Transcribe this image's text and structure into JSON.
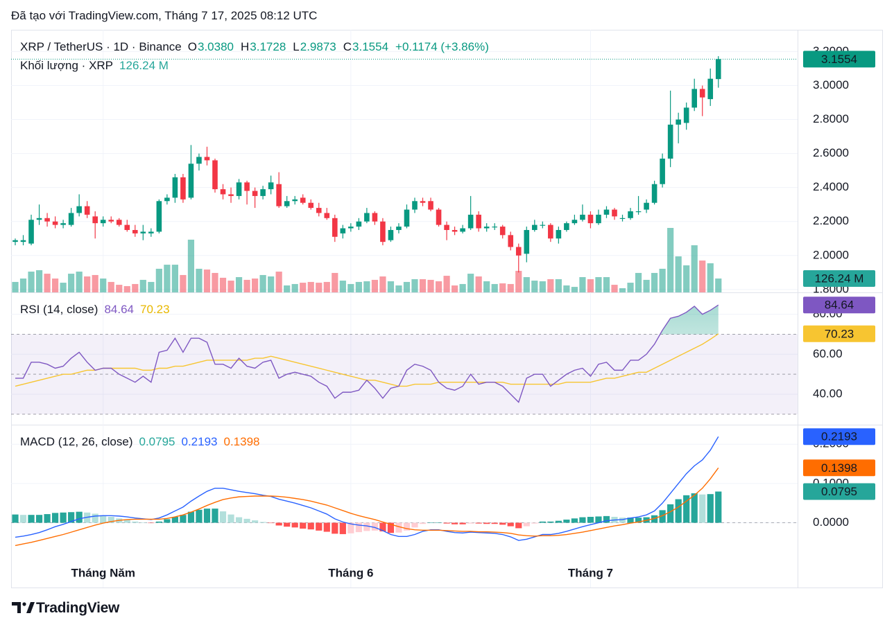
{
  "header": {
    "created": "Đã tạo với TradingView.com, Tháng 7 17, 2025 08:12 UTC",
    "brand": "TradingView"
  },
  "chart_data": [
    {
      "type": "candlestick",
      "title": "XRP / TetherUS · 1D · Binance",
      "ohlc": [
        {
          "key": "O",
          "value": "3.0380"
        },
        {
          "key": "H",
          "value": "3.1728"
        },
        {
          "key": "L",
          "value": "2.9873"
        },
        {
          "key": "C",
          "value": "3.1554"
        }
      ],
      "change": "+0.1174 (+3.86%)",
      "up_color": "#089981",
      "down_color": "#f23645",
      "open": [
        2.08,
        2.08,
        2.07,
        2.21,
        2.22,
        2.2,
        2.18,
        2.18,
        2.25,
        2.29,
        2.23,
        2.19,
        2.21,
        2.21,
        2.18,
        2.15,
        2.13,
        2.13,
        2.14,
        2.32,
        2.34,
        2.46,
        2.34,
        2.54,
        2.58,
        2.56,
        2.39,
        2.36,
        2.35,
        2.43,
        2.38,
        2.35,
        2.39,
        2.42,
        2.29,
        2.32,
        2.34,
        2.31,
        2.28,
        2.25,
        2.22,
        2.13,
        2.16,
        2.17,
        2.2,
        2.25,
        2.2,
        2.09,
        2.15,
        2.17,
        2.27,
        2.32,
        2.32,
        2.27,
        2.18,
        2.15,
        2.14,
        2.16,
        2.24,
        2.16,
        2.17,
        2.17,
        2.12,
        2.05,
        2.01,
        2.15,
        2.18,
        2.18,
        2.1,
        2.15,
        2.19,
        2.21,
        2.24,
        2.19,
        2.24,
        2.27,
        2.22,
        2.22,
        2.26,
        2.27,
        2.31,
        2.42,
        2.57,
        2.77,
        2.78,
        2.87,
        2.98,
        2.92,
        3.038
      ],
      "high": [
        2.1,
        2.12,
        2.24,
        2.3,
        2.25,
        2.23,
        2.21,
        2.28,
        2.36,
        2.32,
        2.26,
        2.23,
        2.23,
        2.22,
        2.21,
        2.18,
        2.18,
        2.16,
        2.33,
        2.36,
        2.48,
        2.48,
        2.65,
        2.6,
        2.64,
        2.57,
        2.42,
        2.4,
        2.45,
        2.44,
        2.4,
        2.41,
        2.47,
        2.49,
        2.35,
        2.35,
        2.36,
        2.33,
        2.31,
        2.28,
        2.24,
        2.18,
        2.19,
        2.22,
        2.28,
        2.26,
        2.22,
        2.17,
        2.19,
        2.3,
        2.34,
        2.34,
        2.34,
        2.28,
        2.2,
        2.17,
        2.18,
        2.35,
        2.26,
        2.19,
        2.19,
        2.18,
        2.14,
        2.07,
        2.17,
        2.21,
        2.2,
        2.19,
        2.17,
        2.2,
        2.24,
        2.3,
        2.26,
        2.27,
        2.29,
        2.28,
        2.24,
        2.28,
        2.35,
        2.33,
        2.44,
        2.6,
        2.97,
        2.84,
        2.9,
        3.04,
        3.0,
        3.1,
        3.1728
      ],
      "low": [
        2.06,
        2.06,
        2.06,
        2.18,
        2.17,
        2.16,
        2.16,
        2.17,
        2.23,
        2.22,
        2.1,
        2.17,
        2.19,
        2.17,
        2.14,
        2.11,
        2.09,
        2.11,
        2.13,
        2.3,
        2.31,
        2.31,
        2.33,
        2.5,
        2.53,
        2.37,
        2.33,
        2.31,
        2.33,
        2.3,
        2.28,
        2.33,
        2.36,
        2.28,
        2.28,
        2.3,
        2.3,
        2.27,
        2.23,
        2.21,
        2.08,
        2.1,
        2.14,
        2.15,
        2.19,
        2.18,
        2.06,
        2.08,
        2.13,
        2.16,
        2.25,
        2.29,
        2.26,
        2.17,
        2.09,
        2.12,
        2.13,
        2.15,
        2.14,
        2.14,
        2.15,
        2.1,
        2.03,
        1.9,
        1.96,
        2.14,
        2.16,
        2.08,
        2.07,
        2.14,
        2.18,
        2.2,
        2.16,
        2.18,
        2.22,
        2.21,
        2.2,
        2.21,
        2.24,
        2.25,
        2.3,
        2.4,
        2.52,
        2.66,
        2.74,
        2.85,
        2.82,
        2.88,
        2.9873
      ],
      "close": [
        2.09,
        2.09,
        2.21,
        2.22,
        2.2,
        2.18,
        2.19,
        2.25,
        2.29,
        2.24,
        2.19,
        2.21,
        2.2,
        2.18,
        2.15,
        2.13,
        2.14,
        2.14,
        2.32,
        2.34,
        2.46,
        2.33,
        2.54,
        2.58,
        2.56,
        2.39,
        2.36,
        2.35,
        2.43,
        2.38,
        2.35,
        2.39,
        2.43,
        2.29,
        2.32,
        2.33,
        2.31,
        2.28,
        2.25,
        2.22,
        2.11,
        2.16,
        2.17,
        2.2,
        2.25,
        2.2,
        2.08,
        2.15,
        2.17,
        2.27,
        2.32,
        2.31,
        2.27,
        2.18,
        2.15,
        2.14,
        2.16,
        2.24,
        2.16,
        2.17,
        2.17,
        2.12,
        2.05,
        2.0,
        2.15,
        2.18,
        2.18,
        2.1,
        2.15,
        2.19,
        2.21,
        2.24,
        2.19,
        2.24,
        2.27,
        2.23,
        2.22,
        2.26,
        2.26,
        2.31,
        2.42,
        2.57,
        2.77,
        2.8,
        2.87,
        2.98,
        2.93,
        3.04,
        3.1554
      ],
      "last_label": "3.1554",
      "ylim": [
        1.783,
        3.328
      ],
      "yticks": [
        {
          "value": 1.8,
          "label": "1.8000"
        },
        {
          "value": 2.0,
          "label": "2.0000"
        },
        {
          "value": 2.2,
          "label": "2.2000"
        },
        {
          "value": 2.4,
          "label": "2.4000"
        },
        {
          "value": 2.6,
          "label": "2.6000"
        },
        {
          "value": 2.8,
          "label": "2.8000"
        },
        {
          "value": 3.0,
          "label": "3.0000"
        },
        {
          "value": 3.2,
          "label": "3.2000"
        }
      ],
      "grid": true,
      "volume": {
        "name": "Khối lượng · XRP",
        "value_label": "126.24 M",
        "values": [
          95,
          126,
          189,
          202,
          170,
          126,
          88,
          170,
          189,
          145,
          158,
          126,
          95,
          69,
          57,
          76,
          114,
          95,
          215,
          252,
          252,
          158,
          480,
          215,
          208,
          177,
          133,
          107,
          139,
          114,
          126,
          158,
          145,
          189,
          63,
          76,
          88,
          95,
          88,
          95,
          177,
          107,
          76,
          95,
          101,
          114,
          145,
          101,
          63,
          95,
          120,
          120,
          114,
          101,
          151,
          63,
          76,
          170,
          145,
          101,
          76,
          82,
          76,
          196,
          139,
          107,
          101,
          120,
          120,
          63,
          50,
          139,
          120,
          139,
          139,
          69,
          38,
          88,
          177,
          114,
          177,
          215,
          587,
          328,
          246,
          429,
          290,
          265,
          126.24
        ]
      }
    },
    {
      "type": "line",
      "title": "RSI (14, close)",
      "series": [
        {
          "color": "#7e57c2",
          "value_label": "84.64",
          "values": [
            48,
            48,
            56,
            56,
            55,
            53,
            54,
            58,
            61,
            56,
            52,
            53,
            53,
            50,
            48,
            46,
            49,
            46,
            61,
            62,
            68,
            61,
            68,
            68,
            66,
            55,
            55,
            53,
            58,
            54,
            53,
            56,
            57,
            48,
            50,
            51,
            50,
            49,
            46,
            44,
            38,
            41,
            41,
            42,
            47,
            43,
            38,
            43,
            44,
            52,
            55,
            54,
            52,
            46,
            43,
            42,
            44,
            50,
            45,
            46,
            46,
            44,
            40,
            36,
            48,
            50,
            50,
            44,
            47,
            50,
            52,
            53,
            49,
            55,
            56,
            52,
            52,
            57,
            57,
            60,
            65,
            72,
            78,
            79,
            81,
            84,
            80,
            82,
            84.64
          ]
        },
        {
          "color": "#f7c531",
          "value_label": "70.23",
          "values": [
            44,
            45,
            46,
            47,
            48,
            49,
            50,
            50,
            51,
            52,
            52,
            53,
            53,
            53,
            53,
            53,
            52,
            52,
            53,
            53,
            54,
            54,
            55,
            56,
            57,
            57,
            57,
            57,
            57,
            57,
            58,
            58,
            59,
            58,
            57,
            56,
            55,
            54,
            53,
            52,
            51,
            50,
            49,
            48,
            47,
            47,
            46,
            45,
            44,
            44,
            45,
            45,
            45,
            46,
            46,
            46,
            46,
            46,
            46,
            46,
            46,
            46,
            45,
            45,
            45,
            45,
            45,
            45,
            45,
            46,
            46,
            46,
            46,
            47,
            48,
            48,
            49,
            50,
            51,
            51,
            53,
            55,
            57,
            59,
            61,
            63,
            65,
            67.5,
            70.23
          ]
        }
      ],
      "ylim": [
        25.1,
        90.6
      ],
      "yticks": [
        {
          "value": 40,
          "label": "40.00"
        },
        {
          "value": 60,
          "label": "60.00"
        },
        {
          "value": 80,
          "label": "80.00"
        }
      ],
      "levels": [
        30,
        50,
        70
      ],
      "band": [
        30,
        70
      ],
      "band_color": "#7e57c2",
      "overbought_fill": "#089981"
    },
    {
      "type": "macd",
      "title": "MACD (12, 26, close)",
      "histogram": {
        "value_label": "0.0795",
        "color": "#26a69a",
        "rising_color": "#26a69a",
        "falling_color": "#b2dfdb",
        "neg_falling_color": "#ff5252",
        "neg_rising_color": "#ffcdd2",
        "values": [
          0.021,
          0.02,
          0.02,
          0.02,
          0.022,
          0.025,
          0.026,
          0.027,
          0.028,
          0.026,
          0.023,
          0.019,
          0.015,
          0.011,
          0.007,
          0.003,
          0.001,
          -0.001,
          0.003,
          0.009,
          0.015,
          0.02,
          0.028,
          0.033,
          0.036,
          0.036,
          0.029,
          0.021,
          0.014,
          0.01,
          0.006,
          0.002,
          -0.001,
          -0.007,
          -0.01,
          -0.012,
          -0.015,
          -0.017,
          -0.02,
          -0.023,
          -0.028,
          -0.029,
          -0.027,
          -0.024,
          -0.021,
          -0.02,
          -0.022,
          -0.026,
          -0.025,
          -0.02,
          -0.012,
          -0.003,
          0.001,
          0.001,
          -0.002,
          -0.004,
          -0.004,
          -0.002,
          -0.002,
          -0.003,
          -0.003,
          -0.005,
          -0.009,
          -0.014,
          -0.009,
          -0.002,
          0.003,
          0.003,
          0.005,
          0.008,
          0.011,
          0.014,
          0.015,
          0.016,
          0.017,
          0.015,
          0.013,
          0.013,
          0.013,
          0.014,
          0.019,
          0.032,
          0.047,
          0.06,
          0.07,
          0.075,
          0.072,
          0.073,
          0.0795
        ]
      },
      "series": [
        {
          "color": "#2962ff",
          "value_label": "0.2193",
          "values": [
            -0.037,
            -0.034,
            -0.03,
            -0.025,
            -0.018,
            -0.01,
            -0.004,
            0.003,
            0.01,
            0.014,
            0.017,
            0.018,
            0.018,
            0.017,
            0.015,
            0.012,
            0.01,
            0.008,
            0.012,
            0.02,
            0.03,
            0.04,
            0.055,
            0.068,
            0.08,
            0.088,
            0.088,
            0.084,
            0.08,
            0.077,
            0.074,
            0.07,
            0.067,
            0.06,
            0.055,
            0.05,
            0.044,
            0.038,
            0.03,
            0.022,
            0.01,
            0.002,
            -0.003,
            -0.006,
            -0.008,
            -0.012,
            -0.02,
            -0.03,
            -0.035,
            -0.035,
            -0.03,
            -0.022,
            -0.018,
            -0.018,
            -0.022,
            -0.025,
            -0.026,
            -0.024,
            -0.025,
            -0.026,
            -0.027,
            -0.03,
            -0.036,
            -0.045,
            -0.042,
            -0.036,
            -0.03,
            -0.03,
            -0.027,
            -0.022,
            -0.016,
            -0.01,
            -0.005,
            0.0,
            0.005,
            0.007,
            0.008,
            0.012,
            0.015,
            0.02,
            0.03,
            0.05,
            0.075,
            0.1,
            0.125,
            0.145,
            0.16,
            0.185,
            0.2193
          ]
        },
        {
          "color": "#ff6d00",
          "value_label": "0.1398",
          "values": [
            -0.058,
            -0.054,
            -0.05,
            -0.045,
            -0.04,
            -0.035,
            -0.03,
            -0.024,
            -0.018,
            -0.012,
            -0.006,
            -0.001,
            0.003,
            0.006,
            0.008,
            0.009,
            0.009,
            0.009,
            0.009,
            0.011,
            0.015,
            0.02,
            0.027,
            0.035,
            0.044,
            0.052,
            0.059,
            0.063,
            0.066,
            0.067,
            0.068,
            0.068,
            0.068,
            0.067,
            0.065,
            0.062,
            0.059,
            0.055,
            0.05,
            0.045,
            0.038,
            0.031,
            0.024,
            0.018,
            0.013,
            0.008,
            0.002,
            -0.004,
            -0.01,
            -0.015,
            -0.018,
            -0.019,
            -0.019,
            -0.019,
            -0.02,
            -0.021,
            -0.022,
            -0.022,
            -0.023,
            -0.023,
            -0.024,
            -0.025,
            -0.027,
            -0.031,
            -0.033,
            -0.034,
            -0.033,
            -0.033,
            -0.032,
            -0.03,
            -0.027,
            -0.024,
            -0.02,
            -0.016,
            -0.012,
            -0.008,
            -0.005,
            -0.001,
            0.002,
            0.006,
            0.011,
            0.018,
            0.028,
            0.04,
            0.055,
            0.07,
            0.088,
            0.112,
            0.1398
          ]
        }
      ],
      "ylim": [
        -0.165,
        0.248
      ],
      "yticks": [
        {
          "value": 0,
          "label": "0.0000"
        },
        {
          "value": 0.1,
          "label": "0.1000"
        },
        {
          "value": 0.2,
          "label": "0.2000"
        }
      ],
      "zero_line": 0,
      "categories": [
        null,
        null,
        null,
        null,
        null,
        null,
        null,
        null,
        null,
        null,
        null,
        "Tháng Năm",
        null,
        null,
        null,
        null,
        null,
        null,
        null,
        null,
        null,
        null,
        null,
        null,
        null,
        null,
        null,
        null,
        null,
        null,
        null,
        null,
        null,
        null,
        null,
        null,
        null,
        null,
        null,
        null,
        null,
        null,
        "Tháng 6",
        null,
        null,
        null,
        null,
        null,
        null,
        null,
        null,
        null,
        null,
        null,
        null,
        null,
        null,
        null,
        null,
        null,
        null,
        null,
        null,
        null,
        null,
        null,
        null,
        null,
        null,
        null,
        null,
        null,
        "Tháng 7",
        null,
        null,
        null,
        null,
        null,
        null,
        null,
        null,
        null,
        null,
        null,
        null,
        null,
        null,
        null,
        null
      ]
    }
  ]
}
